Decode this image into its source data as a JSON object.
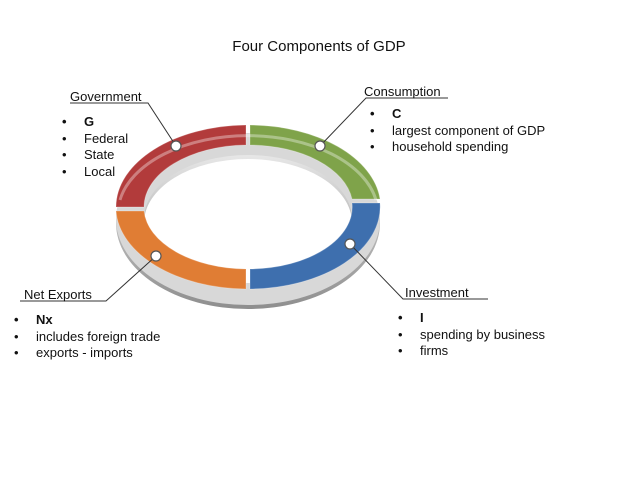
{
  "title": "Four Components of GDP",
  "colors": {
    "government": "#b23b3b",
    "consumption": "#7fa34a",
    "investment": "#3e6fae",
    "net_exports": "#e07d34",
    "ring_rim": "#c9c9c9",
    "leader_line": "#333333"
  },
  "components": {
    "government": {
      "label": "Government",
      "items": [
        "G",
        "Federal",
        "State",
        "Local"
      ]
    },
    "consumption": {
      "label": "Consumption",
      "items": [
        "C",
        "largest component of GDP",
        "household spending"
      ]
    },
    "investment": {
      "label": "Investment",
      "items": [
        "I",
        "spending by business",
        "firms"
      ]
    },
    "net_exports": {
      "label": "Net Exports",
      "items": [
        "Nx",
        "includes foreign trade",
        "exports - imports"
      ]
    }
  }
}
